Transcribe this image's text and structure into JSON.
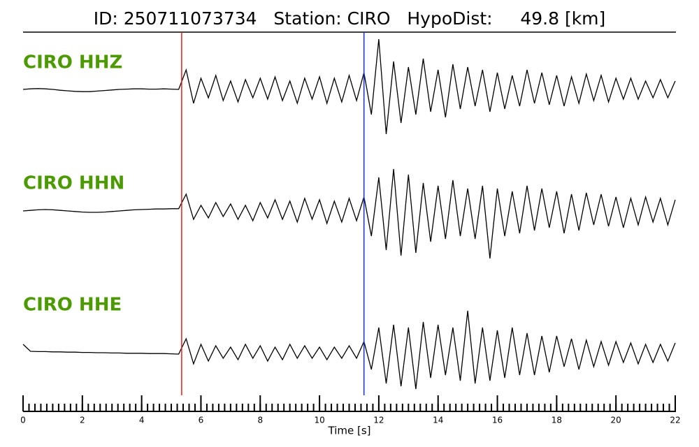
{
  "chart_data": {
    "type": "line",
    "title": "ID: 250711073734   Station: CIRO   HypoDist:     49.8 [km]",
    "xlabel": "Time [s]",
    "xlim": [
      0,
      22
    ],
    "xticks": [
      0,
      2,
      4,
      6,
      8,
      10,
      12,
      14,
      16,
      18,
      20,
      22
    ],
    "xminorticks": [
      0,
      0.2,
      0.4,
      0.6,
      0.8,
      1,
      1.2,
      1.4,
      1.6,
      1.8,
      2,
      2.2,
      2.4,
      2.6,
      2.8,
      3,
      3.2,
      3.4,
      3.6,
      3.8,
      4,
      4.2,
      4.4,
      4.6,
      4.8,
      5,
      5.2,
      5.4,
      5.6,
      5.8,
      6,
      6.2,
      6.4,
      6.6,
      6.8,
      7,
      7.2,
      7.4,
      7.6,
      7.8,
      8,
      8.2,
      8.4,
      8.6,
      8.8,
      9,
      9.2,
      9.4,
      9.6,
      9.8,
      10,
      10.2,
      10.4,
      10.6,
      10.8,
      11,
      11.2,
      11.4,
      11.6,
      11.8,
      12,
      12.2,
      12.4,
      12.6,
      12.8,
      13,
      13.2,
      13.4,
      13.6,
      13.8,
      14,
      14.2,
      14.4,
      14.6,
      14.8,
      15,
      15.2,
      15.4,
      15.6,
      15.8,
      16,
      16.2,
      16.4,
      16.6,
      16.8,
      17,
      17.2,
      17.4,
      17.6,
      17.8,
      18,
      18.2,
      18.4,
      18.6,
      18.8,
      19,
      19.2,
      19.4,
      19.6,
      19.8,
      20,
      20.2,
      20.4,
      20.6,
      20.8,
      21,
      21.2,
      21.4,
      21.6,
      21.8,
      22
    ],
    "label_color": "#4c9a00",
    "markers": [
      {
        "x": 5.35,
        "color": "#e8201c"
      },
      {
        "x": 11.5,
        "color": "#1c2fd0"
      }
    ],
    "x": [
      0,
      0.25,
      0.5,
      0.75,
      1,
      1.25,
      1.5,
      1.75,
      2,
      2.25,
      2.5,
      2.75,
      3,
      3.25,
      3.5,
      3.75,
      4,
      4.25,
      4.5,
      4.75,
      5,
      5.25,
      5.5,
      5.75,
      6,
      6.25,
      6.5,
      6.75,
      7,
      7.25,
      7.5,
      7.75,
      8,
      8.25,
      8.5,
      8.75,
      9,
      9.25,
      9.5,
      9.75,
      10,
      10.25,
      10.5,
      10.75,
      11,
      11.25,
      11.5,
      11.75,
      12,
      12.25,
      12.5,
      12.75,
      13,
      13.25,
      13.5,
      13.75,
      14,
      14.25,
      14.5,
      14.75,
      15,
      15.25,
      15.5,
      15.75,
      16,
      16.25,
      16.5,
      16.75,
      17,
      17.25,
      17.5,
      17.75,
      18,
      18.25,
      18.5,
      18.75,
      19,
      19.25,
      19.5,
      19.75,
      20,
      20.25,
      20.5,
      20.75,
      21,
      21.25,
      21.5,
      21.75,
      22
    ],
    "series": [
      {
        "name": "CIRO HHZ",
        "color": "#000000",
        "values": [
          0,
          0.02,
          0.03,
          0.02,
          0,
          -0.03,
          -0.05,
          -0.07,
          -0.08,
          -0.08,
          -0.06,
          -0.04,
          -0.02,
          0,
          0.01,
          0.02,
          0.02,
          0.01,
          0.01,
          0.02,
          0.01,
          0,
          0.7,
          -0.5,
          0.4,
          -0.3,
          0.5,
          -0.4,
          0.3,
          -0.45,
          0.35,
          -0.3,
          0.4,
          -0.35,
          0.45,
          -0.4,
          0.3,
          -0.5,
          0.4,
          -0.35,
          0.45,
          -0.5,
          0.4,
          -0.45,
          0.5,
          -0.4,
          0.6,
          -0.9,
          1.8,
          -1.6,
          1.0,
          -1.2,
          0.8,
          -0.9,
          1.1,
          -0.8,
          0.7,
          -1.0,
          0.9,
          -0.7,
          0.8,
          -0.6,
          0.7,
          -0.8,
          0.6,
          -0.7,
          0.5,
          -0.6,
          0.7,
          -0.5,
          0.6,
          -0.55,
          0.5,
          -0.6,
          0.45,
          -0.5,
          0.55,
          -0.4,
          0.5,
          -0.45,
          0.4,
          -0.35,
          0.4,
          -0.35,
          0.3,
          -0.3,
          0.35,
          -0.3,
          0.3
        ]
      },
      {
        "name": "CIRO HHN",
        "color": "#000000",
        "values": [
          0,
          0.02,
          0.04,
          0.05,
          0.04,
          0.02,
          0,
          -0.02,
          -0.04,
          -0.05,
          -0.05,
          -0.04,
          -0.02,
          0,
          0.02,
          0.04,
          0.05,
          0.06,
          0.07,
          0.07,
          0.08,
          0.08,
          0.6,
          -0.3,
          0.2,
          -0.25,
          0.3,
          -0.2,
          0.25,
          -0.3,
          0.2,
          -0.35,
          0.3,
          -0.25,
          0.4,
          -0.3,
          0.35,
          -0.4,
          0.45,
          -0.3,
          0.4,
          -0.45,
          0.35,
          -0.4,
          0.45,
          -0.35,
          0.5,
          -0.9,
          1.2,
          -1.4,
          1.5,
          -1.6,
          1.3,
          -1.5,
          1.0,
          -1.1,
          0.9,
          -1.0,
          1.1,
          -0.9,
          0.8,
          -1.0,
          0.9,
          -1.7,
          0.8,
          -0.9,
          0.7,
          -0.8,
          0.9,
          -0.7,
          0.8,
          -0.6,
          0.7,
          -0.8,
          0.6,
          -0.7,
          0.65,
          -0.5,
          0.6,
          -0.55,
          0.5,
          -0.6,
          0.45,
          -0.5,
          0.5,
          -0.4,
          0.45,
          -0.5,
          0.4
        ]
      },
      {
        "name": "CIRO HHE",
        "color": "#000000",
        "values": [
          0.3,
          0.05,
          0.04,
          0.04,
          0.03,
          0.03,
          0.02,
          0.02,
          0.01,
          0.01,
          0,
          0,
          -0.01,
          -0.01,
          -0.02,
          -0.02,
          -0.02,
          -0.03,
          -0.03,
          -0.03,
          -0.04,
          -0.05,
          0.5,
          -0.4,
          0.3,
          -0.3,
          0.25,
          -0.2,
          0.2,
          -0.25,
          0.3,
          -0.2,
          0.25,
          -0.3,
          0.2,
          -0.25,
          0.3,
          -0.2,
          0.25,
          -0.2,
          0.2,
          -0.25,
          0.2,
          -0.2,
          0.25,
          -0.2,
          0.4,
          -0.6,
          0.9,
          -1.1,
          1.0,
          -1.2,
          0.9,
          -1.3,
          1.1,
          -0.9,
          1.0,
          -0.8,
          0.9,
          -1.0,
          1.5,
          -1.1,
          0.9,
          -1.0,
          0.8,
          -0.9,
          0.9,
          -0.8,
          0.7,
          -0.8,
          0.6,
          -0.7,
          0.6,
          -0.5,
          0.5,
          -0.6,
          0.45,
          -0.5,
          0.4,
          -0.45,
          0.4,
          -0.35,
          0.35,
          -0.4,
          0.3,
          -0.35,
          0.3,
          -0.3,
          0.35
        ]
      }
    ]
  }
}
